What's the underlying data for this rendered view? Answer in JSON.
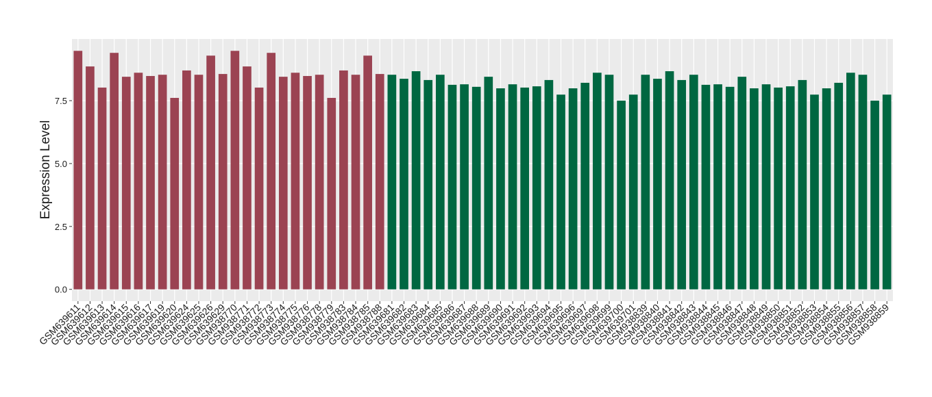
{
  "chart_data": {
    "type": "bar",
    "y_label": "Expression Level",
    "categories": [
      "GSM639611",
      "GSM639612",
      "GSM639613",
      "GSM639614",
      "GSM639615",
      "GSM639616",
      "GSM639617",
      "GSM639619",
      "GSM639620",
      "GSM639624",
      "GSM639625",
      "GSM639626",
      "GSM639629",
      "GSM938770",
      "GSM938771",
      "GSM938772",
      "GSM938773",
      "GSM938774",
      "GSM938775",
      "GSM938776",
      "GSM938778",
      "GSM938779",
      "GSM938783",
      "GSM938784",
      "GSM938785",
      "GSM938788",
      "GSM639681",
      "GSM639682",
      "GSM639683",
      "GSM639684",
      "GSM639685",
      "GSM639686",
      "GSM639687",
      "GSM639688",
      "GSM639689",
      "GSM639690",
      "GSM639691",
      "GSM639692",
      "GSM639693",
      "GSM639694",
      "GSM639695",
      "GSM639696",
      "GSM639697",
      "GSM639698",
      "GSM639699",
      "GSM639700",
      "GSM639701",
      "GSM938839",
      "GSM938840",
      "GSM938841",
      "GSM938842",
      "GSM938843",
      "GSM938844",
      "GSM938845",
      "GSM938846",
      "GSM938847",
      "GSM938848",
      "GSM938849",
      "GSM938850",
      "GSM938851",
      "GSM938852",
      "GSM938853",
      "GSM938854",
      "GSM938855",
      "GSM938856",
      "GSM938857",
      "GSM938858",
      "GSM938859"
    ],
    "values": [
      9.48,
      8.86,
      8.02,
      9.4,
      8.45,
      8.61,
      8.48,
      8.53,
      7.61,
      8.7,
      8.53,
      9.29,
      8.56,
      9.48,
      8.86,
      8.02,
      9.4,
      8.45,
      8.61,
      8.48,
      8.53,
      7.61,
      8.7,
      8.53,
      9.29,
      8.56,
      8.53,
      8.37,
      8.67,
      8.32,
      8.53,
      8.13,
      8.15,
      8.05,
      8.45,
      7.99,
      8.15,
      8.02,
      8.07,
      8.32,
      7.74,
      7.99,
      8.21,
      8.61,
      8.53,
      7.5,
      7.74,
      8.53,
      8.37,
      8.67,
      8.32,
      8.53,
      8.13,
      8.15,
      8.05,
      8.45,
      7.99,
      8.15,
      8.02,
      8.07,
      8.32,
      7.74,
      7.99,
      8.21,
      8.61,
      8.53,
      7.5,
      7.74
    ],
    "colors": [
      "#9b4352",
      "#9b4352",
      "#9b4352",
      "#9b4352",
      "#9b4352",
      "#9b4352",
      "#9b4352",
      "#9b4352",
      "#9b4352",
      "#9b4352",
      "#9b4352",
      "#9b4352",
      "#9b4352",
      "#9b4352",
      "#9b4352",
      "#9b4352",
      "#9b4352",
      "#9b4352",
      "#9b4352",
      "#9b4352",
      "#9b4352",
      "#9b4352",
      "#9b4352",
      "#9b4352",
      "#9b4352",
      "#9b4352",
      "#006741",
      "#006741",
      "#006741",
      "#006741",
      "#006741",
      "#006741",
      "#006741",
      "#006741",
      "#006741",
      "#006741",
      "#006741",
      "#006741",
      "#006741",
      "#006741",
      "#006741",
      "#006741",
      "#006741",
      "#006741",
      "#006741",
      "#006741",
      "#006741",
      "#006741",
      "#006741",
      "#006741",
      "#006741",
      "#006741",
      "#006741",
      "#006741",
      "#006741",
      "#006741",
      "#006741",
      "#006741",
      "#006741",
      "#006741",
      "#006741",
      "#006741",
      "#006741",
      "#006741",
      "#006741",
      "#006741",
      "#006741",
      "#006741"
    ],
    "ylim": [
      -0.47,
      9.95
    ],
    "yticks": [
      {
        "value": 0,
        "label": "0.0"
      },
      2.5,
      {
        "value": 5,
        "label": "5.0"
      },
      7.5
    ],
    "grid": true
  }
}
